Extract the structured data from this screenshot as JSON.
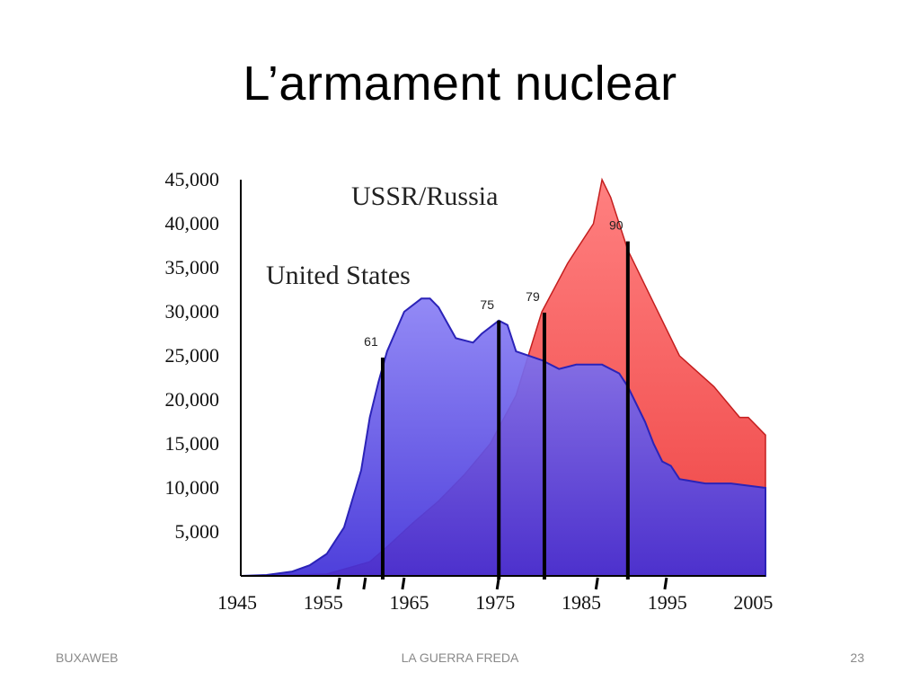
{
  "slide": {
    "title": "L’armament nuclear",
    "footer_left": "BUXAWEB",
    "footer_center": "LA GUERRA FREDA",
    "page_number": "23"
  },
  "colors": {
    "us_fill": "#4a3fe6",
    "us_line": "#2b23b8",
    "ussr_fill": "#f35050",
    "ussr_line": "#c41e1e",
    "marker": "#000000"
  },
  "chart_data": {
    "type": "area",
    "title": "",
    "xlabel": "",
    "ylabel": "",
    "xlim": [
      1945,
      2006
    ],
    "ylim": [
      0,
      45000
    ],
    "grid": false,
    "x_ticks": [
      1945,
      1955,
      1965,
      1975,
      1985,
      1995,
      2005
    ],
    "x_tick_labels": [
      "1945",
      "1955",
      "1965",
      "1975",
      "1985",
      "1995",
      "2005"
    ],
    "y_ticks": [
      5000,
      10000,
      15000,
      20000,
      25000,
      30000,
      35000,
      40000,
      45000
    ],
    "y_tick_labels": [
      "5,000",
      "10,000",
      "15,000",
      "20,000",
      "25,000",
      "30,000",
      "35,000",
      "40,000",
      "45,000"
    ],
    "series": [
      {
        "name": "USSR/Russia",
        "x": [
          1945,
          1950,
          1955,
          1960,
          1962,
          1965,
          1968,
          1971,
          1974,
          1977,
          1980,
          1983,
          1986,
          1987,
          1988,
          1990,
          1993,
          1996,
          2000,
          2003,
          2004,
          2006
        ],
        "y": [
          0,
          50,
          200,
          1600,
          3300,
          6000,
          8500,
          11500,
          15000,
          20500,
          30000,
          35500,
          40000,
          45000,
          43000,
          37000,
          31000,
          25000,
          21500,
          18000,
          18000,
          16000
        ]
      },
      {
        "name": "United States",
        "x": [
          1945,
          1948,
          1951,
          1953,
          1955,
          1957,
          1959,
          1960,
          1961,
          1962,
          1964,
          1966,
          1967,
          1968,
          1970,
          1972,
          1973,
          1975,
          1976,
          1977,
          1980,
          1982,
          1984,
          1986,
          1987,
          1989,
          1990,
          1992,
          1993,
          1994,
          1995,
          1996,
          1999,
          2002,
          2006
        ],
        "y": [
          0,
          100,
          500,
          1200,
          2500,
          5500,
          12000,
          18000,
          22000,
          25500,
          30000,
          31500,
          31500,
          30500,
          27000,
          26500,
          27500,
          29000,
          28500,
          25500,
          24500,
          23500,
          24000,
          24000,
          24000,
          23000,
          21500,
          17500,
          15000,
          13000,
          12500,
          11000,
          10500,
          10500,
          10000
        ]
      }
    ],
    "markers": [
      {
        "label": "61",
        "x": 1961.5,
        "y": 24800
      },
      {
        "label": "75",
        "x": 1975.0,
        "y": 29000
      },
      {
        "label": "79",
        "x": 1980.3,
        "y": 29900
      },
      {
        "label": "90",
        "x": 1990.0,
        "y": 38000
      }
    ],
    "small_ticks": [
      1956.5,
      1959.5,
      1964.0,
      1975.0,
      1986.5,
      1994.5
    ]
  }
}
